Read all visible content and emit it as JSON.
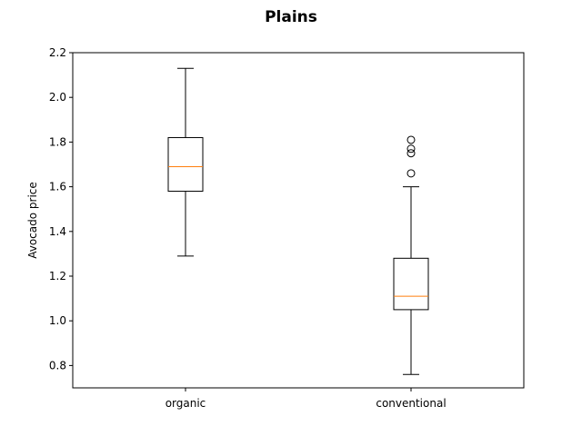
{
  "chart_data": {
    "type": "boxplot",
    "title": "Plains",
    "xlabel": "",
    "ylabel": "Avocado price",
    "ylim": [
      0.7,
      2.2
    ],
    "yticks": [
      "0.8",
      "1.0",
      "1.2",
      "1.4",
      "1.6",
      "1.8",
      "2.0",
      "2.2"
    ],
    "categories": [
      "organic",
      "conventional"
    ],
    "boxes": [
      {
        "name": "organic",
        "whisker_low": 1.29,
        "q1": 1.58,
        "median": 1.69,
        "q3": 1.82,
        "whisker_high": 2.13,
        "outliers": []
      },
      {
        "name": "conventional",
        "whisker_low": 0.76,
        "q1": 1.05,
        "median": 1.11,
        "q3": 1.28,
        "whisker_high": 1.6,
        "outliers": [
          1.66,
          1.75,
          1.77,
          1.81
        ]
      }
    ],
    "colors": {
      "box": "#000000",
      "median": "#ff7f0e"
    },
    "grid": false,
    "legend": "none"
  }
}
